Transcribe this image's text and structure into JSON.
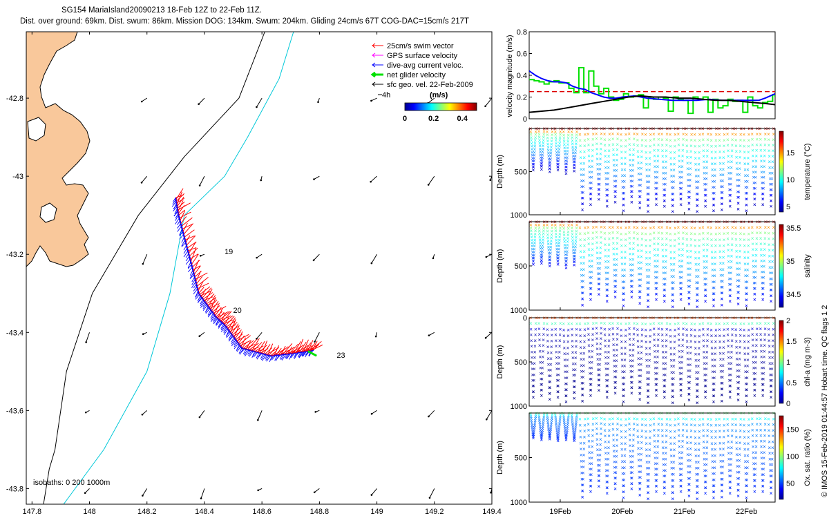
{
  "title": {
    "line1": "SG154 MariaIsland20090213 18-Feb 12Z to 22-Feb 11Z.",
    "line2": "Dist. over ground: 69km. Dist. swum: 86km. Mission DOG: 134km. Swum: 204km. Gliding 24cm/s 67T COG-DAC=15cm/s 217T"
  },
  "credit": "© IMOS 15-Feb-2019 01:44:57 Hobart time. QC flags 1  2",
  "colors": {
    "land": "#f9c89b",
    "coast": "#000000",
    "isobath200": "#00c8d8",
    "isobath1000": "#000000",
    "swim": "#ff0000",
    "gps": "#ff00ff",
    "dac": "#0000ff",
    "net": "#00e000",
    "sfc": "#000000",
    "threshold": "#dd0000"
  },
  "chart_data": [
    {
      "type": "scatter",
      "name": "map",
      "xlabel": "",
      "ylabel": "",
      "xlim": [
        147.78,
        149.4
      ],
      "ylim": [
        -43.84,
        -42.63
      ],
      "xticks": [
        147.8,
        148,
        148.2,
        148.4,
        148.6,
        148.8,
        149,
        149.2,
        149.4
      ],
      "xtick_labels": [
        "147.8",
        "148",
        "148.2",
        "148.4",
        "148.6",
        "148.8",
        "149",
        "149.2",
        "149.4"
      ],
      "yticks": [
        -42.8,
        -43,
        -43.2,
        -43.4,
        -43.6,
        -43.8
      ],
      "ytick_labels": [
        "-42.8",
        "-43",
        "-43.2",
        "-43.4",
        "-43.6",
        "-43.8"
      ],
      "legend": {
        "placement": "top-right",
        "items": [
          {
            "label": "25cm/s swim vector",
            "color": "#ff0000"
          },
          {
            "label": "GPS surface velocity",
            "color": "#ff00ff"
          },
          {
            "label": "dive-avg current veloc.",
            "color": "#0000ff"
          },
          {
            "label": "net glider velocity",
            "color": "#00e000"
          },
          {
            "label": "sfc geo. vel. 22-Feb-2009",
            "color": "#000000"
          }
        ]
      },
      "scale_arrow_label": "4h",
      "colorbar": {
        "title": "(m/s)",
        "ticks": [
          "0",
          "0.2",
          "0.4"
        ],
        "range": [
          0,
          0.5
        ]
      },
      "isobath_note": "isobaths: 0   200  1000m",
      "track_annotations": [
        {
          "text": "19",
          "x": 148.47,
          "y": -43.2
        },
        {
          "text": "20",
          "x": 148.5,
          "y": -43.35
        },
        {
          "text": "23",
          "x": 148.86,
          "y": -43.465
        }
      ],
      "track": [
        {
          "x": 148.3,
          "y": -43.055
        },
        {
          "x": 148.31,
          "y": -43.1
        },
        {
          "x": 148.335,
          "y": -43.17
        },
        {
          "x": 148.36,
          "y": -43.24
        },
        {
          "x": 148.38,
          "y": -43.3
        },
        {
          "x": 148.41,
          "y": -43.33
        },
        {
          "x": 148.44,
          "y": -43.36
        },
        {
          "x": 148.47,
          "y": -43.38
        },
        {
          "x": 148.5,
          "y": -43.41
        },
        {
          "x": 148.53,
          "y": -43.44
        },
        {
          "x": 148.58,
          "y": -43.45
        },
        {
          "x": 148.63,
          "y": -43.46
        },
        {
          "x": 148.69,
          "y": -43.455
        },
        {
          "x": 148.74,
          "y": -43.45
        },
        {
          "x": 148.78,
          "y": -43.445
        }
      ],
      "surface_vectors_grid": {
        "lons": [
          148.0,
          148.2,
          148.4,
          148.6,
          148.8,
          149.0,
          149.2,
          149.4
        ],
        "lats": [
          -42.8,
          -43.0,
          -43.2,
          -43.4,
          -43.6,
          -43.8
        ]
      },
      "isobath_200": [
        {
          "x": 148.71,
          "y": -42.63
        },
        {
          "x": 148.66,
          "y": -42.75
        },
        {
          "x": 148.55,
          "y": -42.9
        },
        {
          "x": 148.47,
          "y": -43.0
        },
        {
          "x": 148.33,
          "y": -43.1
        },
        {
          "x": 148.28,
          "y": -43.3
        },
        {
          "x": 148.2,
          "y": -43.5
        },
        {
          "x": 148.05,
          "y": -43.7
        },
        {
          "x": 147.91,
          "y": -43.84
        }
      ],
      "isobath_1000": [
        {
          "x": 148.61,
          "y": -42.63
        },
        {
          "x": 148.52,
          "y": -42.8
        },
        {
          "x": 148.33,
          "y": -42.95
        },
        {
          "x": 148.17,
          "y": -43.1
        },
        {
          "x": 148.01,
          "y": -43.3
        },
        {
          "x": 147.92,
          "y": -43.5
        },
        {
          "x": 147.88,
          "y": -43.7
        },
        {
          "x": 147.86,
          "y": -43.75
        },
        {
          "x": 147.84,
          "y": -43.84
        }
      ]
    },
    {
      "type": "line",
      "name": "velocity",
      "xlabel": "",
      "ylabel": "velocity magnitude (m/s)",
      "xlim": [
        18.5,
        22.46
      ],
      "ylim": [
        0,
        0.8
      ],
      "yticks": [
        0,
        0.2,
        0.4,
        0.6,
        0.8
      ],
      "ytick_labels": [
        "0",
        "0.2",
        "0.4",
        "0.6",
        "0.8"
      ],
      "threshold": 0.25,
      "series": [
        {
          "color": "#00e000",
          "x": [
            18.5,
            18.58,
            18.66,
            18.74,
            18.82,
            18.9,
            18.98,
            19.06,
            19.14,
            19.22,
            19.3,
            19.38,
            19.46,
            19.54,
            19.62,
            19.7,
            19.78,
            19.86,
            19.94,
            20.02,
            20.1,
            20.18,
            20.26,
            20.34,
            20.42,
            20.5,
            20.58,
            20.66,
            20.74,
            20.82,
            20.9,
            20.98,
            21.06,
            21.14,
            21.22,
            21.3,
            21.38,
            21.46,
            21.54,
            21.62,
            21.7,
            21.78,
            21.86,
            21.94,
            22.02,
            22.1,
            22.18,
            22.26,
            22.34,
            22.42,
            22.46
          ],
          "values": [
            0.36,
            0.35,
            0.34,
            0.32,
            0.34,
            0.35,
            0.33,
            0.33,
            0.28,
            0.24,
            0.47,
            0.24,
            0.44,
            0.3,
            0.23,
            0.28,
            0.2,
            0.17,
            0.18,
            0.23,
            0.2,
            0.21,
            0.22,
            0.1,
            0.2,
            0.18,
            0.2,
            0.19,
            0.07,
            0.2,
            0.18,
            0.17,
            0.05,
            0.2,
            0.18,
            0.2,
            0.06,
            0.18,
            0.1,
            0.12,
            0.18,
            0.16,
            0.17,
            0.06,
            0.2,
            0.12,
            0.1,
            0.15,
            0.16,
            0.22,
            0.2
          ]
        },
        {
          "color": "#0000ff",
          "x": [
            18.5,
            18.6,
            18.7,
            18.8,
            18.9,
            19.0,
            19.1,
            19.2,
            19.3,
            19.4,
            19.5,
            19.6,
            19.7,
            19.8,
            19.9,
            20.0,
            20.2,
            20.4,
            20.6,
            20.8,
            21.0,
            21.2,
            21.4,
            21.6,
            21.8,
            22.0,
            22.2,
            22.3,
            22.46
          ],
          "values": [
            0.44,
            0.4,
            0.37,
            0.35,
            0.34,
            0.34,
            0.33,
            0.3,
            0.28,
            0.27,
            0.24,
            0.22,
            0.2,
            0.19,
            0.19,
            0.2,
            0.21,
            0.19,
            0.18,
            0.17,
            0.17,
            0.17,
            0.18,
            0.17,
            0.17,
            0.17,
            0.17,
            0.19,
            0.23
          ]
        },
        {
          "color": "#000000",
          "x": [
            18.5,
            18.7,
            18.9,
            19.1,
            19.3,
            19.5,
            19.7,
            19.9,
            20.1,
            20.3,
            20.5,
            20.7,
            20.9,
            21.1,
            21.3,
            21.5,
            21.7,
            21.9,
            22.1,
            22.3,
            22.46
          ],
          "values": [
            0.06,
            0.07,
            0.08,
            0.1,
            0.12,
            0.14,
            0.16,
            0.18,
            0.2,
            0.21,
            0.2,
            0.2,
            0.19,
            0.19,
            0.18,
            0.17,
            0.17,
            0.16,
            0.15,
            0.14,
            0.13
          ]
        }
      ]
    },
    {
      "type": "scatter",
      "name": "temperature",
      "xlabel": "",
      "ylabel": "Depth (m)",
      "xlim": [
        18.5,
        22.46
      ],
      "ylim": [
        1000,
        0
      ],
      "yticks": [
        500,
        1000
      ],
      "ytick_labels": [
        "500",
        "1000"
      ],
      "colorbar": {
        "label": "temperature (°C)",
        "range": [
          4,
          19
        ],
        "ticks": [
          5,
          10,
          15
        ],
        "tick_labels": [
          "5",
          "10",
          "15"
        ]
      },
      "profile_color_values": {
        "surface": 18.5,
        "mid": 11,
        "deep": 5
      },
      "dive_max_depths": [
        480,
        470,
        500,
        480,
        520,
        490,
        940,
        880,
        820,
        900,
        850,
        950,
        850,
        920,
        960,
        880,
        900,
        960,
        880,
        930,
        960,
        900,
        950,
        940,
        900,
        930,
        950,
        880,
        880,
        900
      ]
    },
    {
      "type": "scatter",
      "name": "salinity",
      "xlabel": "",
      "ylabel": "Depth (m)",
      "xlim": [
        18.5,
        22.46
      ],
      "ylim": [
        1000,
        0
      ],
      "yticks": [
        500,
        1000
      ],
      "ytick_labels": [
        "500",
        "1000"
      ],
      "colorbar": {
        "label": "salinity",
        "range": [
          34.3,
          35.55
        ],
        "ticks": [
          34.5,
          35,
          35.5
        ],
        "tick_labels": [
          "34.5",
          "35",
          "35.5"
        ]
      },
      "profile_color_values": {
        "surface": 35.5,
        "mid": 34.9,
        "deep": 34.45
      },
      "dive_max_depths": [
        480,
        470,
        500,
        480,
        520,
        490,
        940,
        880,
        820,
        900,
        850,
        950,
        850,
        920,
        960,
        880,
        900,
        960,
        880,
        930,
        960,
        900,
        950,
        940,
        900,
        930,
        950,
        880,
        880,
        900
      ]
    },
    {
      "type": "scatter",
      "name": "chlorophyll",
      "xlabel": "",
      "ylabel": "Depth (m)",
      "xlim": [
        18.5,
        22.46
      ],
      "ylim": [
        1000,
        0
      ],
      "yticks": [
        0,
        500,
        1000
      ],
      "ytick_labels": [
        "0",
        "500",
        "1000"
      ],
      "colorbar": {
        "label": "chl-a (mg m-3)",
        "range": [
          0,
          2
        ],
        "ticks": [
          0,
          0.5,
          1,
          1.5,
          2
        ],
        "tick_labels": [
          "0",
          "0.5",
          "1",
          "1.5",
          "2"
        ]
      },
      "profile_color_values": {
        "surface": 1.6,
        "mid": 0.1,
        "deep": 0.02
      },
      "dive_max_depths": [
        900,
        880,
        920,
        900,
        950,
        910,
        940,
        880,
        820,
        900,
        850,
        950,
        850,
        920,
        960,
        880,
        900,
        960,
        880,
        930,
        960,
        900,
        950,
        940,
        900,
        930,
        950,
        880,
        880,
        900
      ]
    },
    {
      "type": "scatter",
      "name": "oxygen",
      "xlabel": "",
      "ylabel": "Depth (m)",
      "xlim": [
        18.5,
        22.46
      ],
      "ylim": [
        1000,
        0
      ],
      "yticks": [
        500,
        1000
      ],
      "ytick_labels": [
        "500",
        "1000"
      ],
      "xticks": [
        19,
        20,
        21,
        22
      ],
      "xtick_labels": [
        "19Feb",
        "20Feb",
        "21Feb",
        "22Feb"
      ],
      "colorbar": {
        "label": "Ox. sat. ratio (%)",
        "range": [
          20,
          175
        ],
        "ticks": [
          50,
          100,
          150
        ],
        "tick_labels": [
          "50",
          "100",
          "150"
        ]
      },
      "profile_color_values": {
        "surface": 95,
        "mid": 60,
        "deep": 45
      },
      "dive_max_depths": [
        280,
        300,
        290,
        310,
        300,
        310,
        940,
        880,
        820,
        900,
        850,
        950,
        850,
        920,
        960,
        880,
        900,
        960,
        880,
        930,
        960,
        900,
        950,
        940,
        900,
        930,
        950,
        880,
        880,
        900
      ]
    }
  ]
}
